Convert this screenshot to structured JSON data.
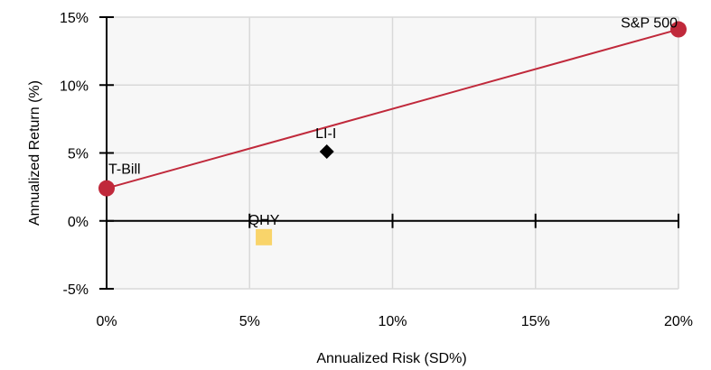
{
  "chart_data": {
    "type": "scatter",
    "title": "",
    "xlabel": "Annualized Risk (SD%)",
    "ylabel": "Annualized Return (%)",
    "xlim": [
      0,
      20
    ],
    "ylim": [
      -5,
      15
    ],
    "x_ticks": [
      0,
      5,
      10,
      15,
      20
    ],
    "x_tick_labels": [
      "0%",
      "5%",
      "10%",
      "15%",
      "20%"
    ],
    "y_ticks": [
      -5,
      0,
      5,
      10,
      15
    ],
    "y_tick_labels": [
      "-5%",
      "0%",
      "5%",
      "10%",
      "15%"
    ],
    "grid": true,
    "plot_background": "#f7f7f7",
    "line": {
      "from": [
        0,
        2.4
      ],
      "to": [
        20,
        14.1
      ],
      "color": "#c0293b"
    },
    "points": [
      {
        "label": "T-Bill",
        "x": 0,
        "y": 2.4,
        "marker": "circle",
        "color": "#c0293b"
      },
      {
        "label": "S&P 500",
        "x": 20,
        "y": 14.1,
        "marker": "circle",
        "color": "#c0293b"
      },
      {
        "label": "LI-I",
        "x": 7.7,
        "y": 5.1,
        "marker": "diamond",
        "color": "#000000"
      },
      {
        "label": "QHY",
        "x": 5.5,
        "y": -1.2,
        "marker": "square",
        "color": "#f9d46a"
      }
    ]
  }
}
